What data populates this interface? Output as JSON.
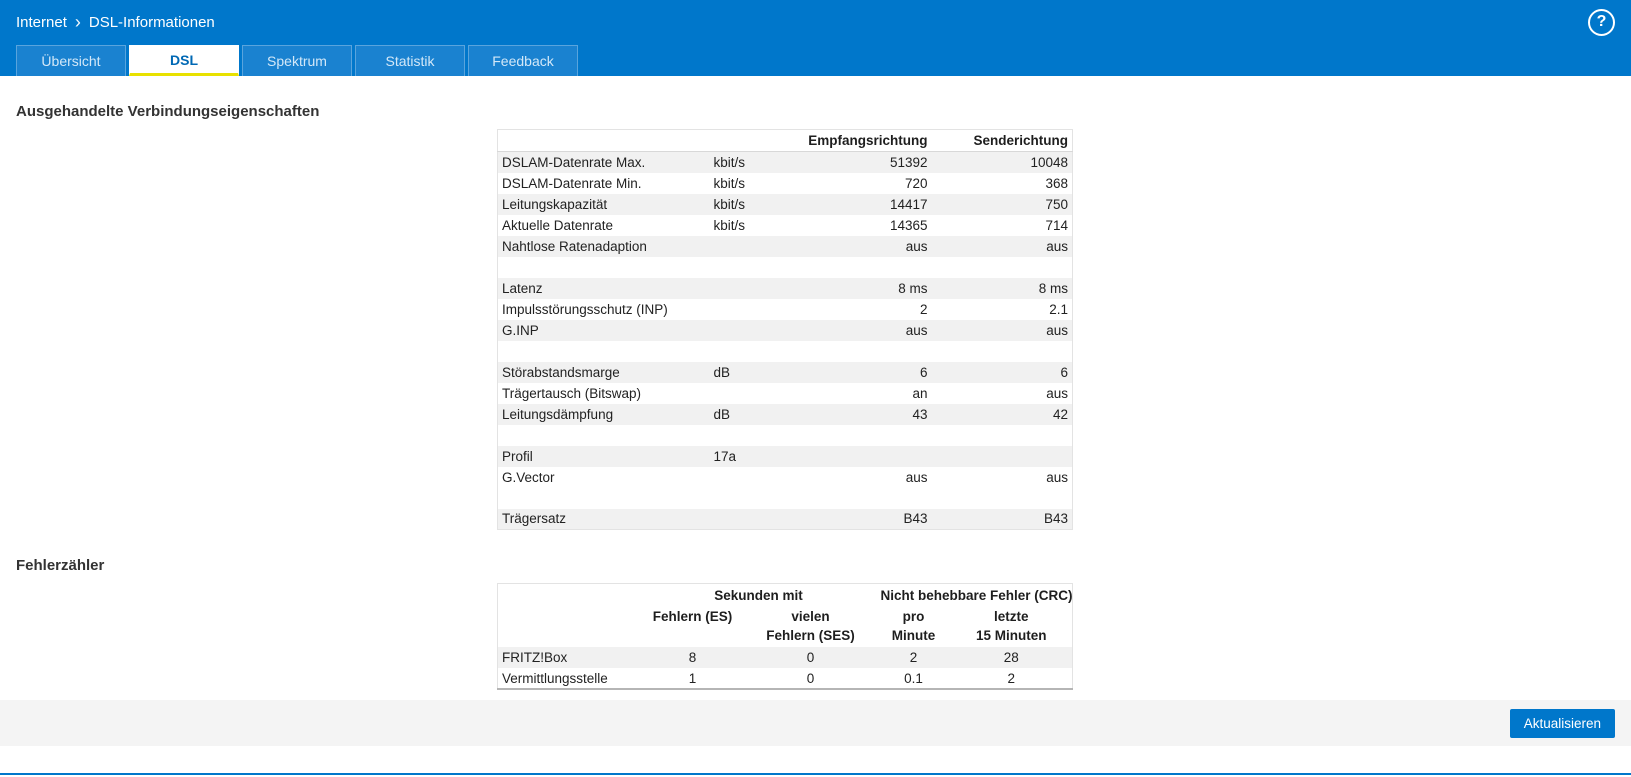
{
  "header": {
    "breadcrumb": {
      "section": "Internet",
      "separator": "›",
      "page": "DSL-Informationen"
    },
    "help_label": "?"
  },
  "tabs": [
    {
      "id": "uebersicht",
      "label": "Übersicht",
      "active": false
    },
    {
      "id": "dsl",
      "label": "DSL",
      "active": true
    },
    {
      "id": "spektrum",
      "label": "Spektrum",
      "active": false
    },
    {
      "id": "statistik",
      "label": "Statistik",
      "active": false
    },
    {
      "id": "feedback",
      "label": "Feedback",
      "active": false
    }
  ],
  "main": {
    "section1_title": "Ausgehandelte Verbindungseigenschaften",
    "connection_table": {
      "col_headers": {
        "rx": "Empfangsrichtung",
        "tx": "Senderichtung"
      },
      "rows": [
        {
          "label": "DSLAM-Datenrate Max.",
          "unit": "kbit/s",
          "rx": "51392",
          "tx": "10048"
        },
        {
          "label": "DSLAM-Datenrate Min.",
          "unit": "kbit/s",
          "rx": "720",
          "tx": "368"
        },
        {
          "label": "Leitungskapazität",
          "unit": "kbit/s",
          "rx": "14417",
          "tx": "750"
        },
        {
          "label": "Aktuelle Datenrate",
          "unit": "kbit/s",
          "rx": "14365",
          "tx": "714"
        },
        {
          "label": "Nahtlose Ratenadaption",
          "unit": "",
          "rx": "aus",
          "tx": "aus"
        },
        {
          "spacer": true
        },
        {
          "label": "Latenz",
          "unit": "",
          "rx": "8 ms",
          "tx": "8 ms"
        },
        {
          "label": "Impulsstörungsschutz (INP)",
          "unit": "",
          "rx": "2",
          "tx": "2.1"
        },
        {
          "label": "G.INP",
          "unit": "",
          "rx": "aus",
          "tx": "aus"
        },
        {
          "spacer": true
        },
        {
          "label": "Störabstandsmarge",
          "unit": "dB",
          "rx": "6",
          "tx": "6"
        },
        {
          "label": "Trägertausch (Bitswap)",
          "unit": "",
          "rx": "an",
          "tx": "aus"
        },
        {
          "label": "Leitungsdämpfung",
          "unit": "dB",
          "rx": "43",
          "tx": "42"
        },
        {
          "spacer": true
        },
        {
          "label": "Profil",
          "unit": "17a",
          "rx": "",
          "tx": ""
        },
        {
          "label": "G.Vector",
          "unit": "",
          "rx": "aus",
          "tx": "aus"
        },
        {
          "spacer": true
        },
        {
          "label": "Trägersatz",
          "unit": "",
          "rx": "B43",
          "tx": "B43"
        }
      ]
    },
    "section2_title": "Fehlerzähler",
    "error_table": {
      "group_headers": [
        "Sekunden mit",
        "Nicht behebbare Fehler (CRC)"
      ],
      "col_headers": [
        [
          "Fehlern (ES)",
          ""
        ],
        [
          "vielen",
          "Fehlern (SES)"
        ],
        [
          "pro",
          "Minute"
        ],
        [
          "letzte",
          "15 Minuten"
        ]
      ],
      "rows": [
        {
          "label": "FRITZ!Box",
          "values": [
            "8",
            "0",
            "2",
            "28"
          ]
        },
        {
          "label": "Vermittlungsstelle",
          "values": [
            "1",
            "0",
            "0.1",
            "2"
          ]
        }
      ]
    }
  },
  "footer": {
    "refresh_button": "Aktualisieren"
  },
  "colors": {
    "header_blue": "#0077cb",
    "accent_yellow": "#e8e100",
    "button_blue": "#0077cb",
    "row_shade": "#f1f1f1"
  }
}
